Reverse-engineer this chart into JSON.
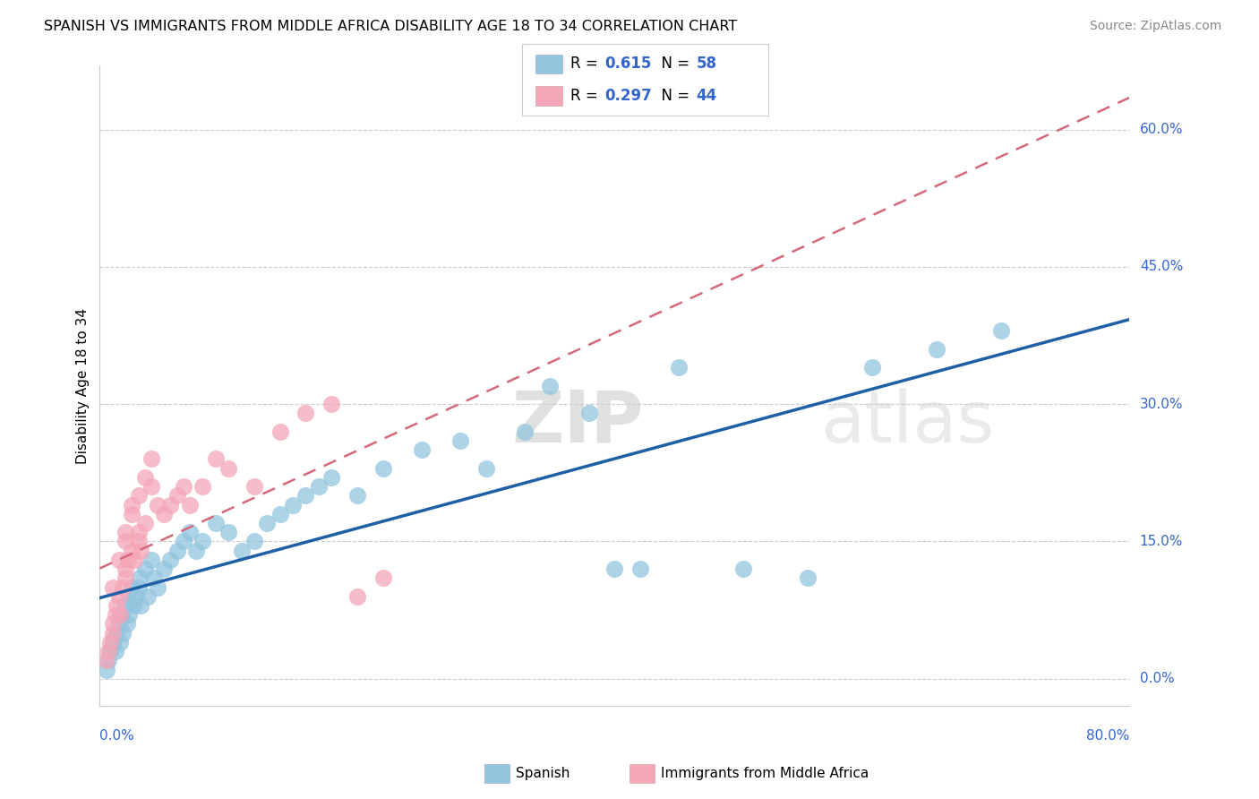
{
  "title": "SPANISH VS IMMIGRANTS FROM MIDDLE AFRICA DISABILITY AGE 18 TO 34 CORRELATION CHART",
  "source": "Source: ZipAtlas.com",
  "ylabel": "Disability Age 18 to 34",
  "ytick_labels": [
    "0.0%",
    "15.0%",
    "30.0%",
    "45.0%",
    "60.0%"
  ],
  "ytick_values": [
    0,
    15,
    30,
    45,
    60
  ],
  "xmin": 0,
  "xmax": 80,
  "ymin": -3,
  "ymax": 67,
  "legend_bottom1": "Spanish",
  "legend_bottom2": "Immigrants from Middle Africa",
  "color_blue": "#92C5DE",
  "color_pink": "#F4A6B8",
  "color_blue_line": "#1F5FA6",
  "color_pink_line": "#D4697A",
  "color_text": "#3366CC",
  "watermark_zip": "ZIP",
  "watermark_atlas": "atlas",
  "spanish_x": [
    0.5,
    0.7,
    0.8,
    1.0,
    1.2,
    1.3,
    1.5,
    1.6,
    1.7,
    1.8,
    2.0,
    2.1,
    2.2,
    2.3,
    2.5,
    2.6,
    2.8,
    3.0,
    3.1,
    3.2,
    3.5,
    3.7,
    4.0,
    4.2,
    4.5,
    5.0,
    5.5,
    6.0,
    6.5,
    7.0,
    7.5,
    8.0,
    9.0,
    10.0,
    11.0,
    12.0,
    13.0,
    14.0,
    15.0,
    16.0,
    17.0,
    18.0,
    20.0,
    22.0,
    25.0,
    28.0,
    30.0,
    33.0,
    35.0,
    38.0,
    40.0,
    42.0,
    45.0,
    50.0,
    55.0,
    60.0,
    65.0,
    70.0
  ],
  "spanish_y": [
    1,
    2,
    3,
    4,
    3,
    5,
    6,
    4,
    7,
    5,
    8,
    6,
    9,
    7,
    10,
    8,
    9,
    10,
    11,
    8,
    12,
    9,
    13,
    11,
    10,
    12,
    13,
    14,
    15,
    16,
    14,
    15,
    17,
    16,
    14,
    15,
    17,
    18,
    19,
    20,
    21,
    22,
    20,
    23,
    25,
    26,
    23,
    27,
    32,
    29,
    12,
    12,
    34,
    12,
    11,
    34,
    36,
    38
  ],
  "immigrants_x": [
    0.5,
    0.7,
    0.8,
    1.0,
    1.0,
    1.2,
    1.3,
    1.5,
    1.6,
    1.8,
    2.0,
    2.0,
    2.2,
    2.5,
    2.7,
    3.0,
    3.0,
    3.2,
    3.5,
    4.0,
    4.5,
    5.0,
    5.5,
    6.0,
    6.5,
    7.0,
    8.0,
    9.0,
    10.0,
    12.0,
    14.0,
    16.0,
    18.0,
    20.0,
    22.0,
    2.0,
    2.5,
    3.0,
    3.5,
    4.0,
    1.0,
    1.5,
    2.0,
    2.5
  ],
  "immigrants_y": [
    2,
    3,
    4,
    5,
    6,
    7,
    8,
    9,
    7,
    10,
    11,
    12,
    13,
    14,
    13,
    15,
    16,
    14,
    17,
    21,
    19,
    18,
    19,
    20,
    21,
    19,
    21,
    24,
    23,
    21,
    27,
    29,
    30,
    9,
    11,
    15,
    18,
    20,
    22,
    24,
    10,
    13,
    16,
    19
  ],
  "r_spanish": 0.615,
  "n_spanish": 58,
  "r_immigrants": 0.297,
  "n_immigrants": 44
}
